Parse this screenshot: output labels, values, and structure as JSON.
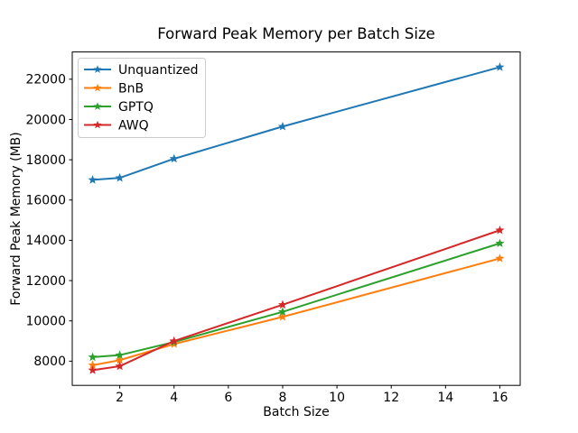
{
  "figure": {
    "background": "#ffffff",
    "title": "Forward Peak Memory per Batch Size",
    "xlabel": "Batch Size",
    "ylabel": "Forward Peak Memory (MB)"
  },
  "chart_data": {
    "type": "line",
    "title": "Forward Peak Memory per Batch Size",
    "xlabel": "Batch Size",
    "ylabel": "Forward Peak Memory (MB)",
    "x": [
      1,
      2,
      4,
      8,
      16
    ],
    "series": [
      {
        "name": "Unquantized",
        "color": "#1f77b4",
        "values": [
          17000,
          17100,
          18050,
          19650,
          22600
        ]
      },
      {
        "name": "BnB",
        "color": "#ff7f0e",
        "values": [
          7800,
          8050,
          8850,
          10200,
          13100
        ]
      },
      {
        "name": "GPTQ",
        "color": "#2ca02c",
        "values": [
          8200,
          8300,
          8950,
          10450,
          13850
        ]
      },
      {
        "name": "AWQ",
        "color": "#d62728",
        "values": [
          7550,
          7750,
          9000,
          10800,
          14500
        ]
      }
    ],
    "marker": "star",
    "line_width": 2,
    "x_ticks": [
      2,
      4,
      6,
      8,
      10,
      12,
      14,
      16
    ],
    "y_ticks": [
      8000,
      10000,
      12000,
      14000,
      16000,
      18000,
      20000,
      22000
    ],
    "xlim": [
      0.25,
      16.75
    ],
    "ylim": [
      6798,
      23353
    ],
    "grid": false,
    "legend_position": "upper-left",
    "legend_border_color": "#cccccc",
    "axis_color": "#000000",
    "legend_labels": [
      "Unquantized",
      "BnB",
      "GPTQ",
      "AWQ"
    ]
  }
}
